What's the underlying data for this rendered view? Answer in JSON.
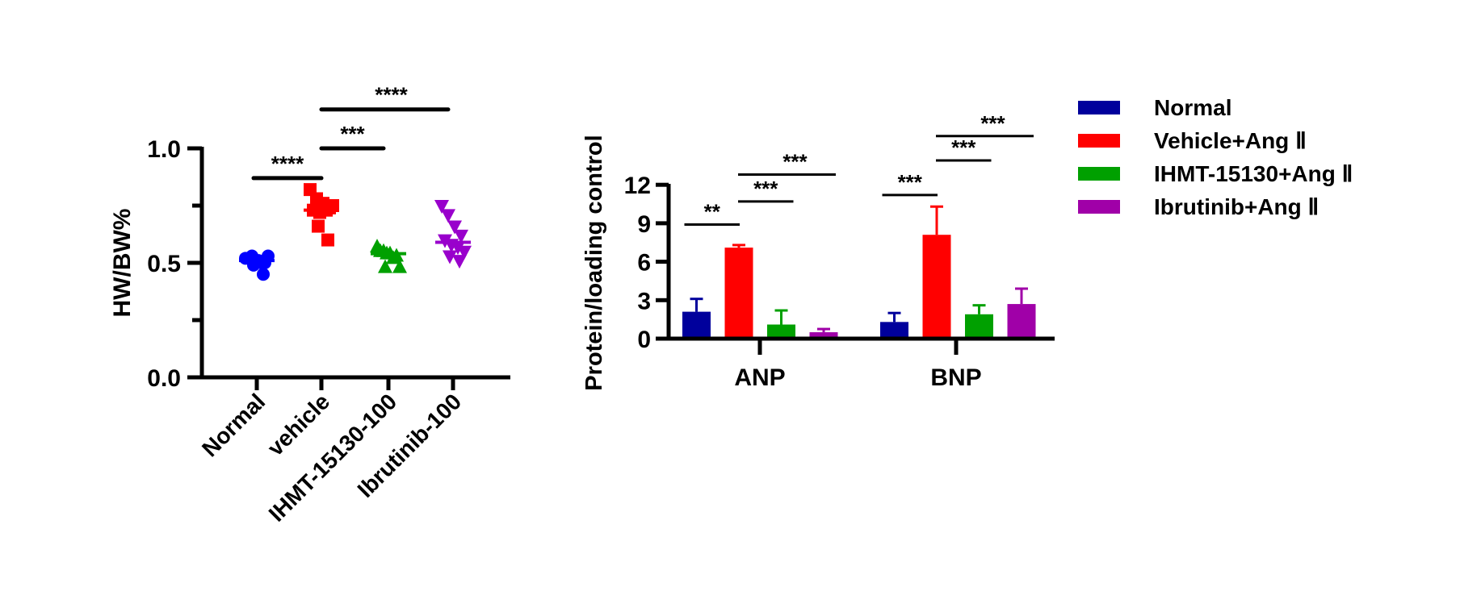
{
  "colors": {
    "normal": "#0000ff",
    "vehicle": "#ff0000",
    "ihmt": "#00a000",
    "ibrutinib": "#9900cc",
    "bar_normal": "#00009c",
    "bar_vehicle": "#ff0000",
    "bar_ihmt": "#00a000",
    "bar_ibrutinib": "#a000a8"
  },
  "chart_data": [
    {
      "type": "scatter",
      "title": "",
      "xlabel": "",
      "ylabel": "HW/BW%",
      "ylim": [
        0,
        1.0
      ],
      "yticks": [
        "0.0",
        "0.5",
        "1.0"
      ],
      "categories": [
        "Normal",
        "vehicle",
        "IHMT-15130-100",
        "Ibrutinib-100"
      ],
      "series": [
        {
          "name": "Normal",
          "marker": "circle",
          "values": [
            0.52,
            0.53,
            0.51,
            0.5,
            0.52,
            0.51,
            0.5,
            0.53,
            0.49,
            0.45
          ],
          "median": 0.51
        },
        {
          "name": "vehicle",
          "marker": "square",
          "values": [
            0.82,
            0.78,
            0.76,
            0.74,
            0.73,
            0.72,
            0.73,
            0.75,
            0.66,
            0.6
          ],
          "median": 0.73
        },
        {
          "name": "IHMT-15130-100",
          "marker": "triangle-up",
          "values": [
            0.57,
            0.55,
            0.54,
            0.53,
            0.55,
            0.54,
            0.52,
            0.48,
            0.48
          ],
          "median": 0.54
        },
        {
          "name": "Ibrutinib-100",
          "marker": "triangle-down",
          "values": [
            0.75,
            0.71,
            0.66,
            0.62,
            0.6,
            0.58,
            0.57,
            0.55,
            0.53,
            0.51
          ],
          "median": 0.59
        }
      ],
      "significance": [
        {
          "from": "Normal",
          "to": "vehicle",
          "label": "****",
          "level": 0.87
        },
        {
          "from": "vehicle",
          "to": "IHMT-15130-100",
          "label": "***",
          "level": 1.0
        },
        {
          "from": "vehicle",
          "to": "Ibrutinib-100",
          "label": "****",
          "level": 1.17
        }
      ]
    },
    {
      "type": "bar",
      "title": "",
      "xlabel": "",
      "ylabel": "Protein/loading control",
      "ylim": [
        0,
        12
      ],
      "yticks": [
        "0",
        "3",
        "6",
        "9",
        "12"
      ],
      "categories": [
        "ANP",
        "BNP"
      ],
      "series": [
        {
          "name": "Normal",
          "values": [
            2.1,
            1.3
          ],
          "errors": [
            1.0,
            0.7
          ]
        },
        {
          "name": "Vehicle+Ang Ⅱ",
          "values": [
            7.1,
            8.1
          ],
          "errors": [
            0.2,
            2.2
          ]
        },
        {
          "name": "IHMT-15130+Ang Ⅱ",
          "values": [
            1.1,
            1.9
          ],
          "errors": [
            1.1,
            0.7
          ]
        },
        {
          "name": "Ibrutinib+Ang Ⅱ",
          "values": [
            0.5,
            2.7
          ],
          "errors": [
            0.25,
            1.2
          ]
        }
      ],
      "significance": [
        {
          "category": "ANP",
          "from": 0,
          "to": 1,
          "label": "**",
          "level": 8.9
        },
        {
          "category": "ANP",
          "from": 1,
          "to": 2,
          "label": "***",
          "level": 10.7
        },
        {
          "category": "ANP",
          "from": 1,
          "to": 3,
          "label": "***",
          "level": 12.8
        },
        {
          "category": "BNP",
          "from": 0,
          "to": 1,
          "label": "***",
          "level": 11.2
        },
        {
          "category": "BNP",
          "from": 1,
          "to": 2,
          "label": "***",
          "level": 13.9
        },
        {
          "category": "BNP",
          "from": 1,
          "to": 3,
          "label": "***",
          "level": 15.8
        }
      ],
      "legend": {
        "position": "right",
        "entries": [
          "Normal",
          "Vehicle+Ang Ⅱ",
          "IHMT-15130+Ang Ⅱ",
          "Ibrutinib+Ang Ⅱ"
        ]
      }
    }
  ]
}
